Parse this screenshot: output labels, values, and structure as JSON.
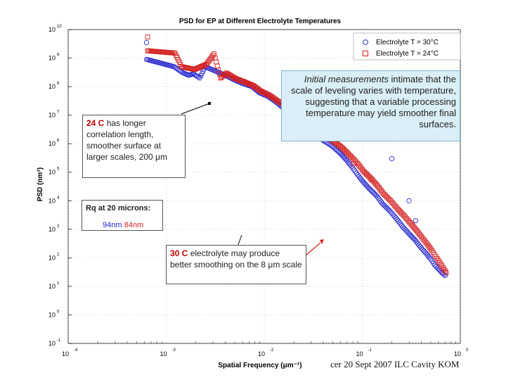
{
  "chart_data": {
    "type": "scatter",
    "title": "PSD for EP at Different Electrolyte Temperatures",
    "xlabel": "Spatial Frequency (μm⁻¹)",
    "ylabel": "PSD (nm³)",
    "xscale": "log",
    "yscale": "log",
    "xlim": [
      0.0001,
      1
    ],
    "ylim": [
      0.1,
      10000000000
    ],
    "x_ticks": [
      {
        "base": "10",
        "exp": "-4",
        "value": 0.0001
      },
      {
        "base": "10",
        "exp": "-3",
        "value": 0.001
      },
      {
        "base": "10",
        "exp": "-2",
        "value": 0.01
      },
      {
        "base": "10",
        "exp": "-1",
        "value": 0.1
      },
      {
        "base": "10",
        "exp": "0",
        "value": 1
      }
    ],
    "y_ticks": [
      {
        "base": "10",
        "exp": "10",
        "value": 10000000000
      },
      {
        "base": "10",
        "exp": "9",
        "value": 1000000000
      },
      {
        "base": "10",
        "exp": "8",
        "value": 100000000
      },
      {
        "base": "10",
        "exp": "7",
        "value": 10000000
      },
      {
        "base": "10",
        "exp": "6",
        "value": 1000000
      },
      {
        "base": "10",
        "exp": "5",
        "value": 100000
      },
      {
        "base": "10",
        "exp": "4",
        "value": 10000
      },
      {
        "base": "10",
        "exp": "3",
        "value": 1000
      },
      {
        "base": "10",
        "exp": "2",
        "value": 100
      },
      {
        "base": "10",
        "exp": "1",
        "value": 10
      },
      {
        "base": "10",
        "exp": "0",
        "value": 1
      },
      {
        "base": "10",
        "exp": "-1",
        "value": 0.1
      }
    ],
    "legend_position": "top-right",
    "series": [
      {
        "name": "Electrolyte T = 30°C",
        "marker": "circle",
        "color": "#2b2bd0",
        "points": [
          [
            0.00063,
            3500000000
          ],
          [
            0.00063,
            900000000
          ],
          [
            0.0012,
            500000000
          ],
          [
            0.0015,
            300000000
          ],
          [
            0.0017,
            250000000
          ],
          [
            0.0019,
            280000000
          ],
          [
            0.0022,
            200000000
          ],
          [
            0.0025,
            500000000
          ],
          [
            0.004,
            250000000
          ],
          [
            0.005,
            170000000
          ],
          [
            0.006,
            130000000
          ],
          [
            0.0075,
            100000000
          ],
          [
            0.009,
            60000000
          ],
          [
            0.011,
            45000000
          ],
          [
            0.013,
            30000000
          ],
          [
            0.015,
            20000000
          ],
          [
            0.018,
            12000000
          ],
          [
            0.022,
            7000000
          ],
          [
            0.027,
            4000000
          ],
          [
            0.033,
            2300000
          ],
          [
            0.04,
            1300000
          ],
          [
            0.05,
            800000
          ],
          [
            0.06,
            450000
          ],
          [
            0.07,
            250000
          ],
          [
            0.08,
            140000
          ],
          [
            0.09,
            80000
          ],
          [
            0.1,
            50000
          ],
          [
            0.12,
            25000
          ],
          [
            0.14,
            15000
          ],
          [
            0.16,
            8000
          ],
          [
            0.19,
            4500
          ],
          [
            0.22,
            2500
          ],
          [
            0.26,
            1200
          ],
          [
            0.3,
            700
          ],
          [
            0.35,
            400
          ],
          [
            0.4,
            220
          ],
          [
            0.45,
            140
          ],
          [
            0.5,
            90
          ],
          [
            0.55,
            55
          ],
          [
            0.6,
            40
          ],
          [
            0.65,
            30
          ],
          [
            0.7,
            24
          ]
        ],
        "extra_points": [
          [
            0.2,
            300000
          ],
          [
            0.3,
            10000
          ],
          [
            0.35,
            2000
          ]
        ]
      },
      {
        "name": "Electrolyte T = 24°C",
        "marker": "square",
        "color": "#d42020",
        "points": [
          [
            0.00063,
            5500000000
          ],
          [
            0.00063,
            1800000000
          ],
          [
            0.0012,
            1500000000
          ],
          [
            0.0014,
            500000000
          ],
          [
            0.0019,
            400000000
          ],
          [
            0.0025,
            600000000
          ],
          [
            0.003,
            1400000000
          ],
          [
            0.0035,
            200000000
          ],
          [
            0.004,
            300000000
          ],
          [
            0.005,
            190000000
          ],
          [
            0.006,
            150000000
          ],
          [
            0.0075,
            110000000
          ],
          [
            0.009,
            70000000
          ],
          [
            0.011,
            50000000
          ],
          [
            0.013,
            34000000
          ],
          [
            0.015,
            24000000
          ],
          [
            0.018,
            15000000
          ],
          [
            0.022,
            9000000
          ],
          [
            0.027,
            5500000
          ],
          [
            0.033,
            3300000
          ],
          [
            0.04,
            2000000
          ],
          [
            0.05,
            1200000
          ],
          [
            0.06,
            750000
          ],
          [
            0.07,
            450000
          ],
          [
            0.08,
            280000
          ],
          [
            0.09,
            180000
          ],
          [
            0.1,
            110000
          ],
          [
            0.12,
            60000
          ],
          [
            0.14,
            33000
          ],
          [
            0.16,
            18000
          ],
          [
            0.19,
            10000
          ],
          [
            0.22,
            5500
          ],
          [
            0.26,
            3000
          ],
          [
            0.3,
            1700
          ],
          [
            0.35,
            900
          ],
          [
            0.4,
            500
          ],
          [
            0.45,
            300
          ],
          [
            0.5,
            180
          ],
          [
            0.55,
            110
          ],
          [
            0.6,
            70
          ],
          [
            0.65,
            45
          ],
          [
            0.7,
            30
          ]
        ],
        "extra_points": [
          [
            0.03,
            6000000
          ],
          [
            0.08,
            200000
          ],
          [
            0.12,
            55000
          ]
        ]
      }
    ]
  },
  "annotations": {
    "a24": {
      "hl": "24 C",
      "rest": " has longer correlation length, smoother surface at larger scales, 200 μm"
    },
    "rq": {
      "title": "Rq at 20 microns:",
      "blue": "94nm",
      "red": "84nm"
    },
    "a30": {
      "hl": "30 C",
      "rest": " electrolyte may produce better smoothing on the 8 μm scale"
    },
    "initial": {
      "italic": "Initial measurements",
      "rest": " intimate that the scale of leveling varies with temperature, suggesting that a variable processing temperature may yield smoother final surfaces."
    }
  },
  "footer": "cer 20 Sept 2007 ILC Cavity KOM",
  "colors": {
    "blue": "#2b2bd0",
    "red": "#d42020",
    "annotation_bg": "#d9eef6"
  }
}
